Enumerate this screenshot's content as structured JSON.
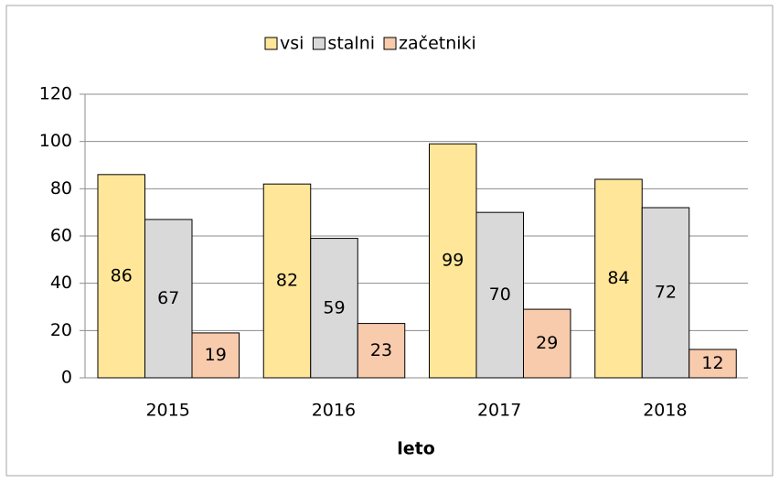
{
  "chart_data": {
    "type": "bar",
    "categories": [
      "2015",
      "2016",
      "2017",
      "2018"
    ],
    "series": [
      {
        "name": "vsi",
        "color": "#ffe699",
        "values": [
          86,
          82,
          99,
          84
        ]
      },
      {
        "name": "stalni",
        "color": "#d9d9d9",
        "values": [
          67,
          59,
          70,
          72
        ]
      },
      {
        "name": "začetniki",
        "color": "#f8cbad",
        "values": [
          19,
          23,
          29,
          12
        ]
      }
    ],
    "x_label": "leto",
    "ylim": [
      0,
      120
    ],
    "yticks": [
      0,
      20,
      40,
      60,
      80,
      100,
      120
    ],
    "grid": true,
    "legend": "top"
  }
}
